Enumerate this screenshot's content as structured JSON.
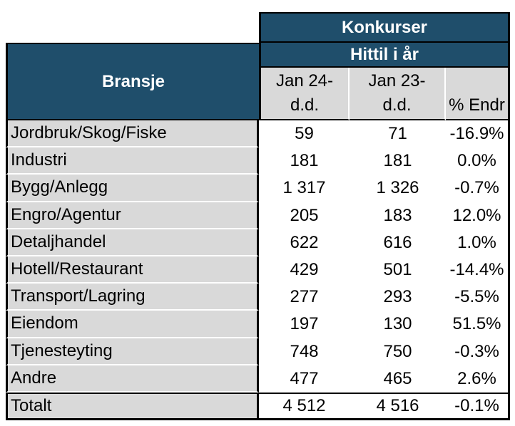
{
  "chart_data": {
    "type": "table",
    "title": "Konkurser",
    "subtitle": "Hittil i år",
    "row_header_label": "Bransje",
    "columns": [
      {
        "label": "Jan 24- d.d.",
        "line1": "Jan 24-",
        "line2": "d.d."
      },
      {
        "label": "Jan 23- d.d.",
        "line1": "Jan 23-",
        "line2": "d.d."
      },
      {
        "label": "% Endr",
        "line1": "",
        "line2": "% Endr"
      }
    ],
    "rows": [
      {
        "name": "Jordbruk/Skog/Fiske",
        "jan24_dd": "59",
        "jan23_dd": "71",
        "pct_change": "-16.9%"
      },
      {
        "name": "Industri",
        "jan24_dd": "181",
        "jan23_dd": "181",
        "pct_change": "0.0%"
      },
      {
        "name": "Bygg/Anlegg",
        "jan24_dd": "1 317",
        "jan23_dd": "1 326",
        "pct_change": "-0.7%"
      },
      {
        "name": "Engro/Agentur",
        "jan24_dd": "205",
        "jan23_dd": "183",
        "pct_change": "12.0%"
      },
      {
        "name": "Detaljhandel",
        "jan24_dd": "622",
        "jan23_dd": "616",
        "pct_change": "1.0%"
      },
      {
        "name": "Hotell/Restaurant",
        "jan24_dd": "429",
        "jan23_dd": "501",
        "pct_change": "-14.4%"
      },
      {
        "name": "Transport/Lagring",
        "jan24_dd": "277",
        "jan23_dd": "293",
        "pct_change": "-5.5%"
      },
      {
        "name": "Eiendom",
        "jan24_dd": "197",
        "jan23_dd": "130",
        "pct_change": "51.5%"
      },
      {
        "name": "Tjenesteyting",
        "jan24_dd": "748",
        "jan23_dd": "750",
        "pct_change": "-0.3%"
      },
      {
        "name": "Andre",
        "jan24_dd": "477",
        "jan23_dd": "465",
        "pct_change": "2.6%"
      }
    ],
    "total_row": {
      "name": "Totalt",
      "jan24_dd": "4 512",
      "jan23_dd": "4 516",
      "pct_change": "-0.1%"
    },
    "colors": {
      "header_blue": "#1F4E6B",
      "label_gray": "#D9D9D9",
      "border_black": "#000000",
      "header_text": "#FFFFFF",
      "body_text": "#000000",
      "gridline_white": "#FFFFFF"
    },
    "layout": {
      "grid": "off",
      "legend": "none"
    }
  }
}
